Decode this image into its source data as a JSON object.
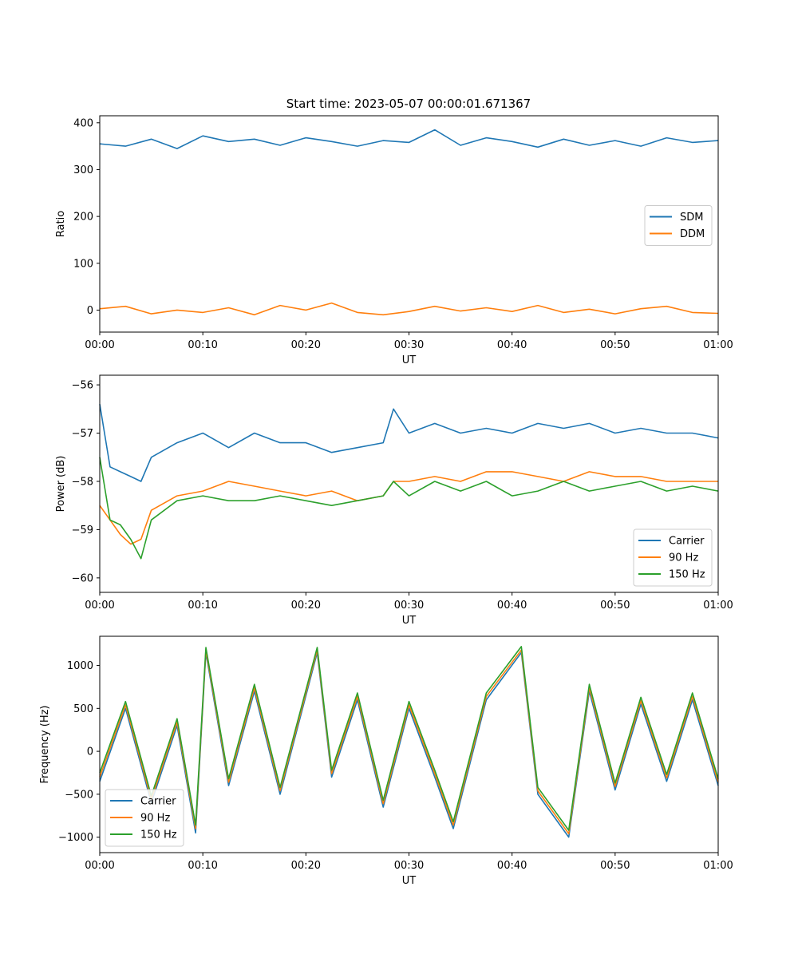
{
  "figure": {
    "title": "Start time: 2023-05-07 00:00:01.671367"
  },
  "colors": {
    "blue": "#1f77b4",
    "orange": "#ff7f0e",
    "green": "#2ca02c"
  },
  "chart_data": [
    {
      "type": "line",
      "title": "Start time: 2023-05-07 00:00:01.671367",
      "xlabel": "UT",
      "ylabel": "Ratio",
      "x_unit": "minutes",
      "xlim": [
        0,
        60
      ],
      "ylim": [
        -47,
        415
      ],
      "xticks": [
        0,
        10,
        20,
        30,
        40,
        50,
        60
      ],
      "xtick_labels": [
        "00:00",
        "00:10",
        "00:20",
        "00:30",
        "00:40",
        "00:50",
        "01:00"
      ],
      "yticks": [
        0,
        100,
        200,
        300,
        400
      ],
      "ytick_labels": [
        "0",
        "100",
        "200",
        "300",
        "400"
      ],
      "legend_position": "center-right",
      "x": [
        0,
        2.5,
        5,
        7.5,
        10,
        12.5,
        15,
        17.5,
        20,
        22.5,
        25,
        27.5,
        30,
        32.5,
        35,
        37.5,
        40,
        42.5,
        45,
        47.5,
        50,
        52.5,
        55,
        57.5,
        60
      ],
      "series": [
        {
          "name": "SDM",
          "color": "#1f77b4",
          "values": [
            355,
            350,
            365,
            345,
            372,
            360,
            365,
            352,
            368,
            360,
            350,
            362,
            358,
            385,
            352,
            368,
            360,
            348,
            365,
            352,
            362,
            350,
            368,
            358,
            362
          ]
        },
        {
          "name": "DDM",
          "color": "#ff7f0e",
          "values": [
            3,
            8,
            -8,
            0,
            -5,
            5,
            -10,
            10,
            0,
            15,
            -5,
            -10,
            -3,
            8,
            -2,
            5,
            -3,
            10,
            -5,
            2,
            -8,
            3,
            8,
            -5,
            -7
          ]
        }
      ]
    },
    {
      "type": "line",
      "title": "",
      "xlabel": "UT",
      "ylabel": "Power (dB)",
      "x_unit": "minutes",
      "xlim": [
        0,
        60
      ],
      "ylim": [
        -60.3,
        -55.8
      ],
      "xticks": [
        0,
        10,
        20,
        30,
        40,
        50,
        60
      ],
      "xtick_labels": [
        "00:00",
        "00:10",
        "00:20",
        "00:30",
        "00:40",
        "00:50",
        "01:00"
      ],
      "yticks": [
        -60,
        -59,
        -58,
        -57,
        -56
      ],
      "ytick_labels": [
        "−60",
        "−59",
        "−58",
        "−57",
        "−56"
      ],
      "legend_position": "lower-right",
      "x": [
        0,
        1,
        2,
        3,
        4,
        5,
        7.5,
        10,
        12.5,
        15,
        17.5,
        20,
        22.5,
        25,
        27.5,
        28.5,
        30,
        32.5,
        35,
        37.5,
        40,
        42.5,
        45,
        47.5,
        50,
        52.5,
        55,
        57.5,
        60
      ],
      "series": [
        {
          "name": "Carrier",
          "color": "#1f77b4",
          "values": [
            -56.4,
            -57.7,
            -57.8,
            -57.9,
            -58.0,
            -57.5,
            -57.2,
            -57.0,
            -57.3,
            -57.0,
            -57.2,
            -57.2,
            -57.4,
            -57.3,
            -57.2,
            -56.5,
            -57.0,
            -56.8,
            -57.0,
            -56.9,
            -57.0,
            -56.8,
            -56.9,
            -56.8,
            -57.0,
            -56.9,
            -57.0,
            -57.0,
            -57.1
          ]
        },
        {
          "name": "90 Hz",
          "color": "#ff7f0e",
          "values": [
            -58.5,
            -58.8,
            -59.1,
            -59.3,
            -59.2,
            -58.6,
            -58.3,
            -58.2,
            -58.0,
            -58.1,
            -58.2,
            -58.3,
            -58.2,
            -58.4,
            -58.3,
            -58.0,
            -58.0,
            -57.9,
            -58.0,
            -57.8,
            -57.8,
            -57.9,
            -58.0,
            -57.8,
            -57.9,
            -57.9,
            -58.0,
            -58.0,
            -58.0
          ]
        },
        {
          "name": "150 Hz",
          "color": "#2ca02c",
          "values": [
            -57.5,
            -58.8,
            -58.9,
            -59.2,
            -59.6,
            -58.8,
            -58.4,
            -58.3,
            -58.4,
            -58.4,
            -58.3,
            -58.4,
            -58.5,
            -58.4,
            -58.3,
            -58.0,
            -58.3,
            -58.0,
            -58.2,
            -58.0,
            -58.3,
            -58.2,
            -58.0,
            -58.2,
            -58.1,
            -58.0,
            -58.2,
            -58.1,
            -58.2
          ]
        }
      ]
    },
    {
      "type": "line",
      "title": "",
      "xlabel": "UT",
      "ylabel": "Frequency (Hz)",
      "x_unit": "minutes",
      "xlim": [
        0,
        60
      ],
      "ylim": [
        -1180,
        1340
      ],
      "xticks": [
        0,
        10,
        20,
        30,
        40,
        50,
        60
      ],
      "xtick_labels": [
        "00:00",
        "00:10",
        "00:20",
        "00:30",
        "00:40",
        "00:50",
        "01:00"
      ],
      "yticks": [
        -1000,
        -500,
        0,
        500,
        1000
      ],
      "ytick_labels": [
        "−1000",
        "−500",
        "0",
        "500",
        "1000"
      ],
      "legend_position": "lower-left",
      "x": [
        0,
        2.5,
        5,
        7.5,
        9.3,
        10.3,
        12.5,
        15,
        17.5,
        21.1,
        22.5,
        25,
        27.5,
        30,
        32.5,
        34.3,
        37.5,
        40.9,
        42.5,
        45.5,
        47.5,
        50,
        52.5,
        55,
        57.5,
        60
      ],
      "series": [
        {
          "name": "Carrier",
          "color": "#1f77b4",
          "values": [
            -350,
            500,
            -600,
            300,
            -950,
            1150,
            -400,
            700,
            -500,
            1150,
            -300,
            600,
            -650,
            500,
            -300,
            -900,
            600,
            1150,
            -500,
            -1000,
            700,
            -450,
            550,
            -350,
            600,
            -400
          ]
        },
        {
          "name": "90 Hz",
          "color": "#ff7f0e",
          "values": [
            -300,
            540,
            -560,
            340,
            -900,
            1180,
            -360,
            740,
            -460,
            1180,
            -260,
            640,
            -610,
            540,
            -260,
            -860,
            640,
            1180,
            -460,
            -960,
            740,
            -410,
            590,
            -310,
            640,
            -360
          ]
        },
        {
          "name": "150 Hz",
          "color": "#2ca02c",
          "values": [
            -250,
            580,
            -520,
            380,
            -860,
            1210,
            -320,
            780,
            -420,
            1210,
            -220,
            680,
            -570,
            580,
            -220,
            -820,
            680,
            1220,
            -420,
            -920,
            780,
            -370,
            630,
            -270,
            680,
            -320
          ]
        }
      ]
    }
  ]
}
